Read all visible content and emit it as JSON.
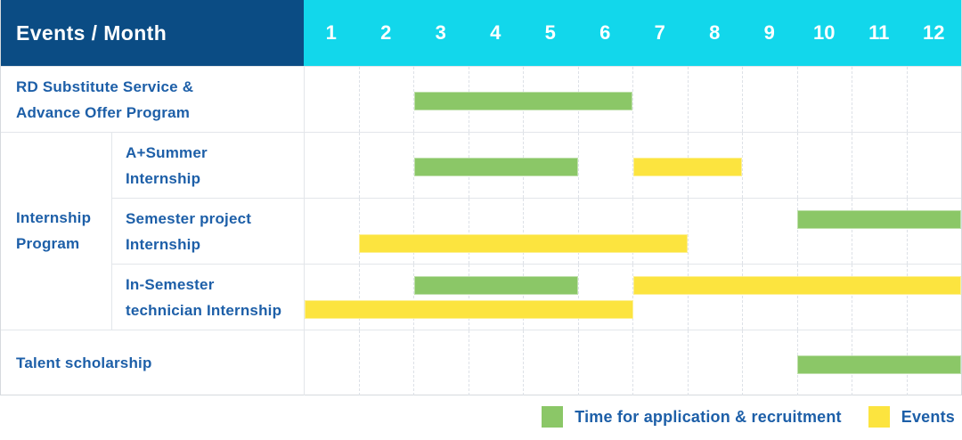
{
  "header": {
    "title": "Events / Month",
    "months": [
      "1",
      "2",
      "3",
      "4",
      "5",
      "6",
      "7",
      "8",
      "9",
      "10",
      "11",
      "12"
    ]
  },
  "colors": {
    "header_navy": "#0B4C84",
    "header_cyan": "#12D7EB",
    "bar_green": "#8BC767",
    "bar_yellow": "#FCE43F",
    "label_blue": "#1D5FA8"
  },
  "chart_data": {
    "type": "gantt",
    "title": "Events / Month",
    "x": {
      "label": "Month",
      "ticks": [
        1,
        2,
        3,
        4,
        5,
        6,
        7,
        8,
        9,
        10,
        11,
        12
      ],
      "range": [
        1,
        12
      ]
    },
    "grid": true,
    "legend_position": "bottom-right",
    "legend": [
      {
        "label": "Time for application & recruitment",
        "color": "#8BC767"
      },
      {
        "label": "Events",
        "color": "#FCE43F"
      }
    ],
    "group": {
      "label": "Internship Program",
      "label_lines": [
        "Internship",
        "Program"
      ]
    },
    "tasks": [
      {
        "label": "RD Substitute Service & Advance Offer Program",
        "label_lines": [
          "RD Substitute Service &",
          "Advance Offer Program"
        ],
        "group": null,
        "bars": [
          {
            "series": "Time for application & recruitment",
            "start_month": 3,
            "end_month": 6,
            "lane": "single"
          }
        ]
      },
      {
        "label": "A+Summer Internship",
        "label_lines": [
          "A+Summer",
          "Internship"
        ],
        "group": "Internship Program",
        "bars": [
          {
            "series": "Time for application & recruitment",
            "start_month": 3,
            "end_month": 5,
            "lane": "single"
          },
          {
            "series": "Events",
            "start_month": 7,
            "end_month": 8,
            "lane": "single"
          }
        ]
      },
      {
        "label": "Semester project Internship",
        "label_lines": [
          "Semester project",
          "Internship"
        ],
        "group": "Internship Program",
        "bars": [
          {
            "series": "Time for application & recruitment",
            "start_month": 10,
            "end_month": 12,
            "lane": "top"
          },
          {
            "series": "Events",
            "start_month": 2,
            "end_month": 7,
            "lane": "bottom"
          }
        ]
      },
      {
        "label": "In-Semester technician Internship",
        "label_lines": [
          "In-Semester",
          "technician Internship"
        ],
        "group": "Internship Program",
        "bars": [
          {
            "series": "Time for application & recruitment",
            "start_month": 3,
            "end_month": 5,
            "lane": "top"
          },
          {
            "series": "Events",
            "start_month": 7,
            "end_month": 12,
            "lane": "top"
          },
          {
            "series": "Events",
            "start_month": 1,
            "end_month": 6,
            "lane": "bottom"
          }
        ]
      },
      {
        "label": "Talent scholarship",
        "label_lines": [
          "Talent scholarship"
        ],
        "group": null,
        "bars": [
          {
            "series": "Time for application & recruitment",
            "start_month": 10,
            "end_month": 12,
            "lane": "single"
          }
        ]
      }
    ]
  }
}
